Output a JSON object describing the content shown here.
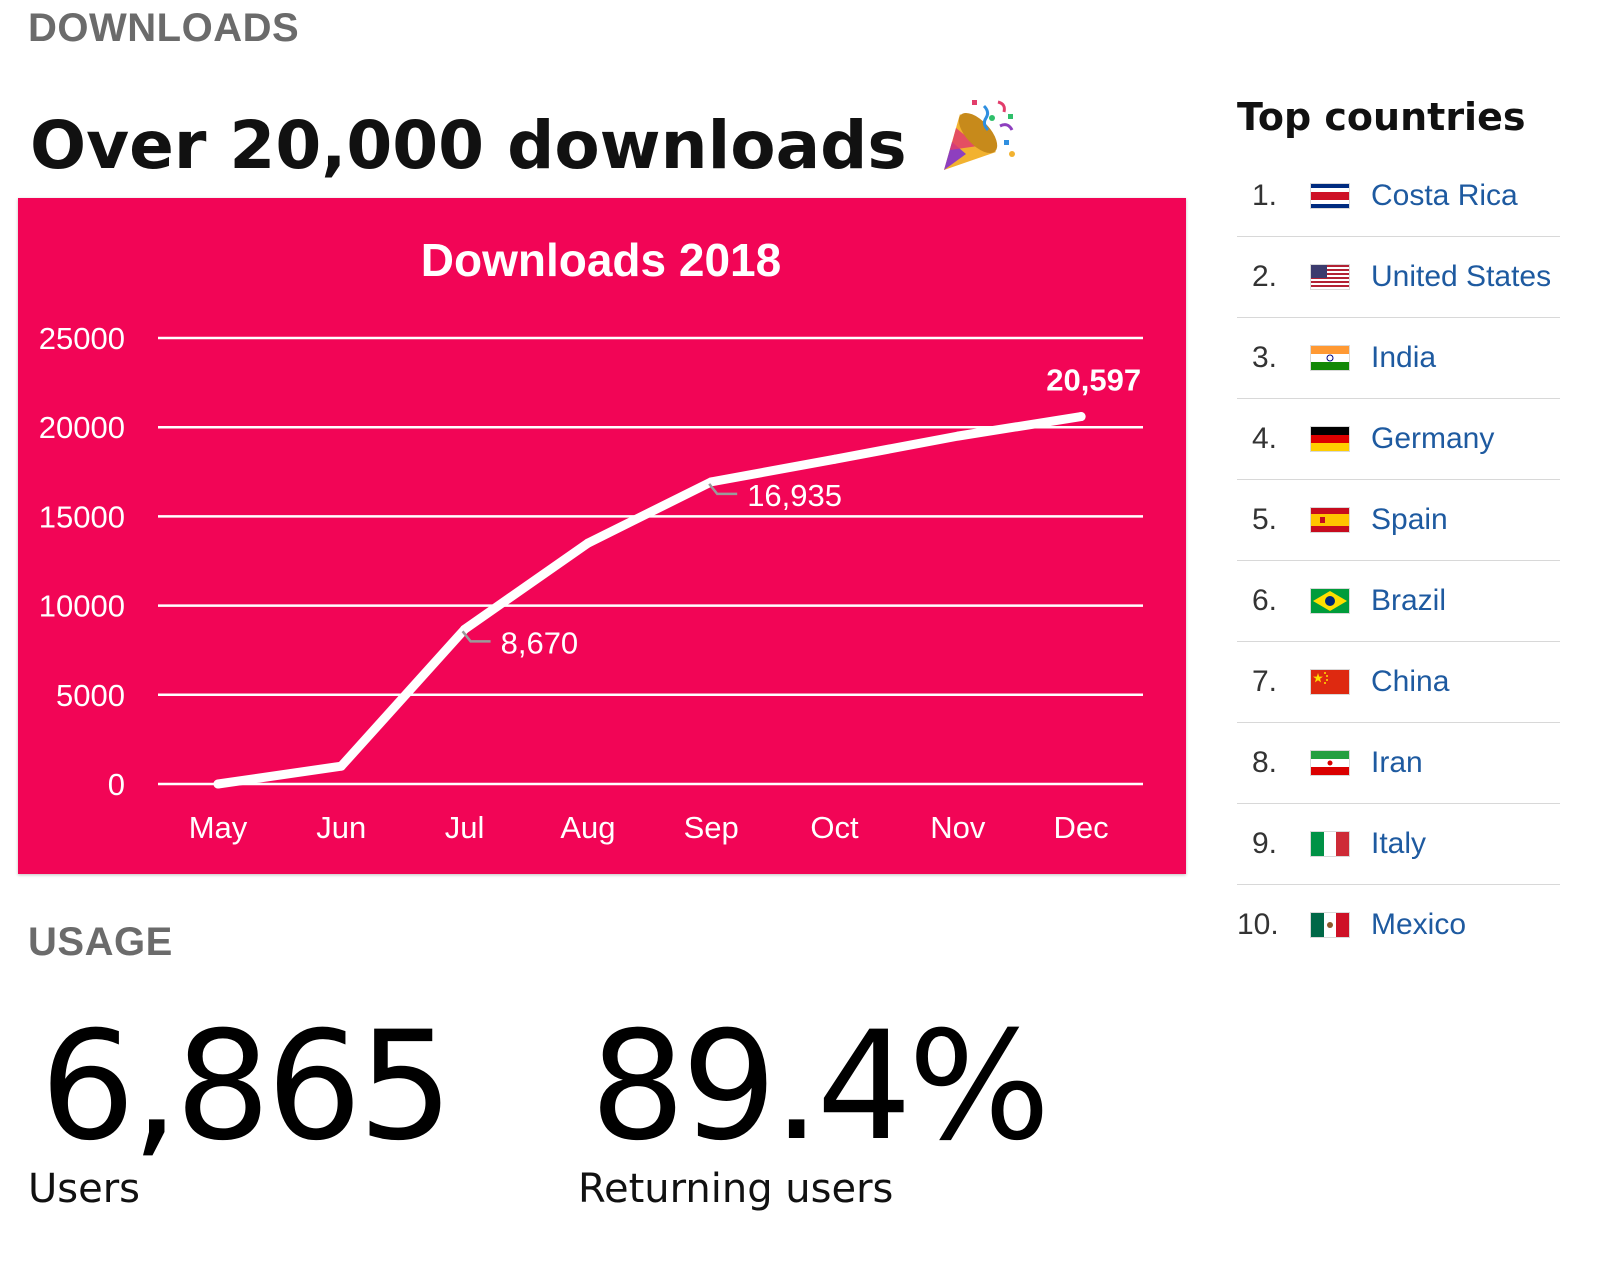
{
  "downloads_section": {
    "heading": "DOWNLOADS",
    "headline": "Over 20,000 downloads",
    "headline_icon": "party-popper-icon"
  },
  "usage_section": {
    "heading": "USAGE",
    "stats": {
      "users": {
        "value": "6,865",
        "label": "Users"
      },
      "returning": {
        "value": "89.4%",
        "label": "Returning users"
      }
    }
  },
  "top_countries": {
    "title": "Top countries",
    "items": [
      {
        "rank": "1.",
        "name": "Costa Rica",
        "flag": "costa-rica-flag-icon"
      },
      {
        "rank": "2.",
        "name": "United States",
        "flag": "united-states-flag-icon"
      },
      {
        "rank": "3.",
        "name": "India",
        "flag": "india-flag-icon"
      },
      {
        "rank": "4.",
        "name": "Germany",
        "flag": "germany-flag-icon"
      },
      {
        "rank": "5.",
        "name": "Spain",
        "flag": "spain-flag-icon"
      },
      {
        "rank": "6.",
        "name": "Brazil",
        "flag": "brazil-flag-icon"
      },
      {
        "rank": "7.",
        "name": "China",
        "flag": "china-flag-icon"
      },
      {
        "rank": "8.",
        "name": "Iran",
        "flag": "iran-flag-icon"
      },
      {
        "rank": "9.",
        "name": "Italy",
        "flag": "italy-flag-icon"
      },
      {
        "rank": "10.",
        "name": "Mexico",
        "flag": "mexico-flag-icon"
      }
    ]
  },
  "colors": {
    "chart_background": "#f20556",
    "line": "#ffffff",
    "link": "#1e5aa0",
    "heading_gray": "#6b6b6b"
  },
  "chart_data": {
    "type": "line",
    "title": "Downloads 2018",
    "xlabel": "",
    "ylabel": "",
    "categories": [
      "May",
      "Jun",
      "Jul",
      "Aug",
      "Sep",
      "Oct",
      "Nov",
      "Dec"
    ],
    "series": [
      {
        "values": [
          0,
          1000,
          8670,
          13500,
          16935,
          18200,
          19500,
          20597
        ]
      }
    ],
    "ylim": [
      0,
      25000
    ],
    "yticks": [
      "0",
      "5000",
      "10000",
      "15000",
      "20000",
      "25000"
    ],
    "grid": true,
    "annotations": [
      {
        "category": "Jul",
        "value": 8670,
        "text": "8,670"
      },
      {
        "category": "Sep",
        "value": 16935,
        "text": "16,935"
      },
      {
        "category": "Dec",
        "value": 20597,
        "text": "20,597"
      }
    ]
  }
}
